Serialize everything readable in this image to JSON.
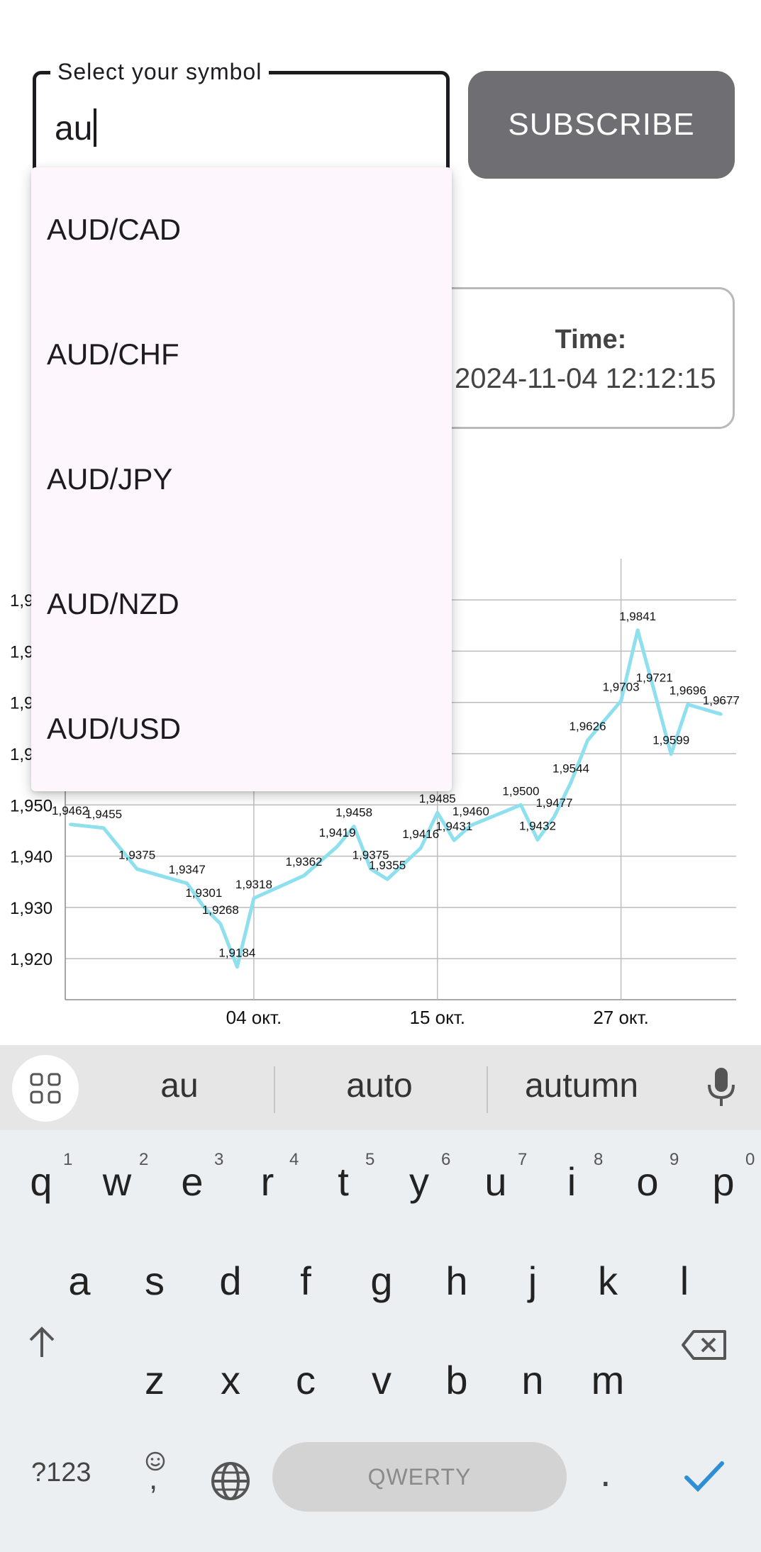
{
  "form": {
    "label": "Select your symbol",
    "value": "au",
    "subscribe_label": "SUBSCRIBE"
  },
  "time_card": {
    "title": "Time:",
    "value": "2024-11-04 12:12:15"
  },
  "dropdown": {
    "options": [
      "AUD/CAD",
      "AUD/CHF",
      "AUD/JPY",
      "AUD/NZD",
      "AUD/USD"
    ]
  },
  "chart_data": {
    "type": "line",
    "color": "#8fe0ef",
    "y_ticks": [
      "1,920",
      "1,930",
      "1,940",
      "1,950",
      "1,960",
      "1,970",
      "1,980",
      "1,990"
    ],
    "y_tick_values": [
      1.92,
      1.93,
      1.94,
      1.95,
      1.96,
      1.97,
      1.98,
      1.99
    ],
    "ylim": [
      1.912,
      1.995
    ],
    "x_ticks": [
      {
        "label": "04 окт.",
        "index": 11
      },
      {
        "label": "15 окт.",
        "index": 22
      },
      {
        "label": "27 окт.",
        "index": 33
      }
    ],
    "series": [
      {
        "values": [
          1.9462,
          1.9455,
          1.9375,
          1.9347,
          1.9301,
          1.9268,
          1.9184,
          1.9318,
          1.9362,
          1.9419,
          1.9458,
          1.9375,
          1.9355,
          1.9416,
          1.9485,
          1.9431,
          1.946,
          1.95,
          1.9432,
          1.9477,
          1.9544,
          1.9626,
          1.9703,
          1.9841,
          1.9721,
          1.9599,
          1.9696,
          1.9677
        ],
        "labels": [
          "1,9462",
          "1,9455",
          "1,9375",
          "1,9347",
          "1,9301",
          "1,9268",
          "1,9184",
          "1,9318",
          "1,9362",
          "1,9419",
          "1,9458",
          "1,9375",
          "1,9355",
          "1,9416",
          "1,9485",
          "1,9431",
          "1,9460",
          "1,9500",
          "1,9432",
          "1,9477",
          "1,9544",
          "1,9626",
          "1,9703",
          "1,9841",
          "1,9721",
          "1,9599",
          "1,9696",
          "1,9677"
        ],
        "x_index": [
          0,
          2,
          4,
          7,
          8,
          9,
          10,
          11,
          14,
          16,
          17,
          18,
          19,
          21,
          22,
          23,
          24,
          27,
          28,
          29,
          30,
          31,
          33,
          34,
          35,
          36,
          37,
          39
        ]
      }
    ],
    "grid": true
  },
  "keyboard": {
    "suggestions": [
      "au",
      "auto",
      "autumn"
    ],
    "row1": [
      "q",
      "w",
      "e",
      "r",
      "t",
      "y",
      "u",
      "i",
      "o",
      "p"
    ],
    "row1_hints": [
      "1",
      "2",
      "3",
      "4",
      "5",
      "6",
      "7",
      "8",
      "9",
      "0"
    ],
    "row2": [
      "a",
      "s",
      "d",
      "f",
      "g",
      "h",
      "j",
      "k",
      "l"
    ],
    "row3": [
      "z",
      "x",
      "c",
      "v",
      "b",
      "n",
      "m"
    ],
    "symbols_label": "?123",
    "comma_label": ",",
    "space_label": "QWERTY",
    "period_label": "."
  },
  "colors": {
    "accent": "#2e8fd6",
    "button_bg": "#6f6f73",
    "line": "#8fe0ef"
  }
}
